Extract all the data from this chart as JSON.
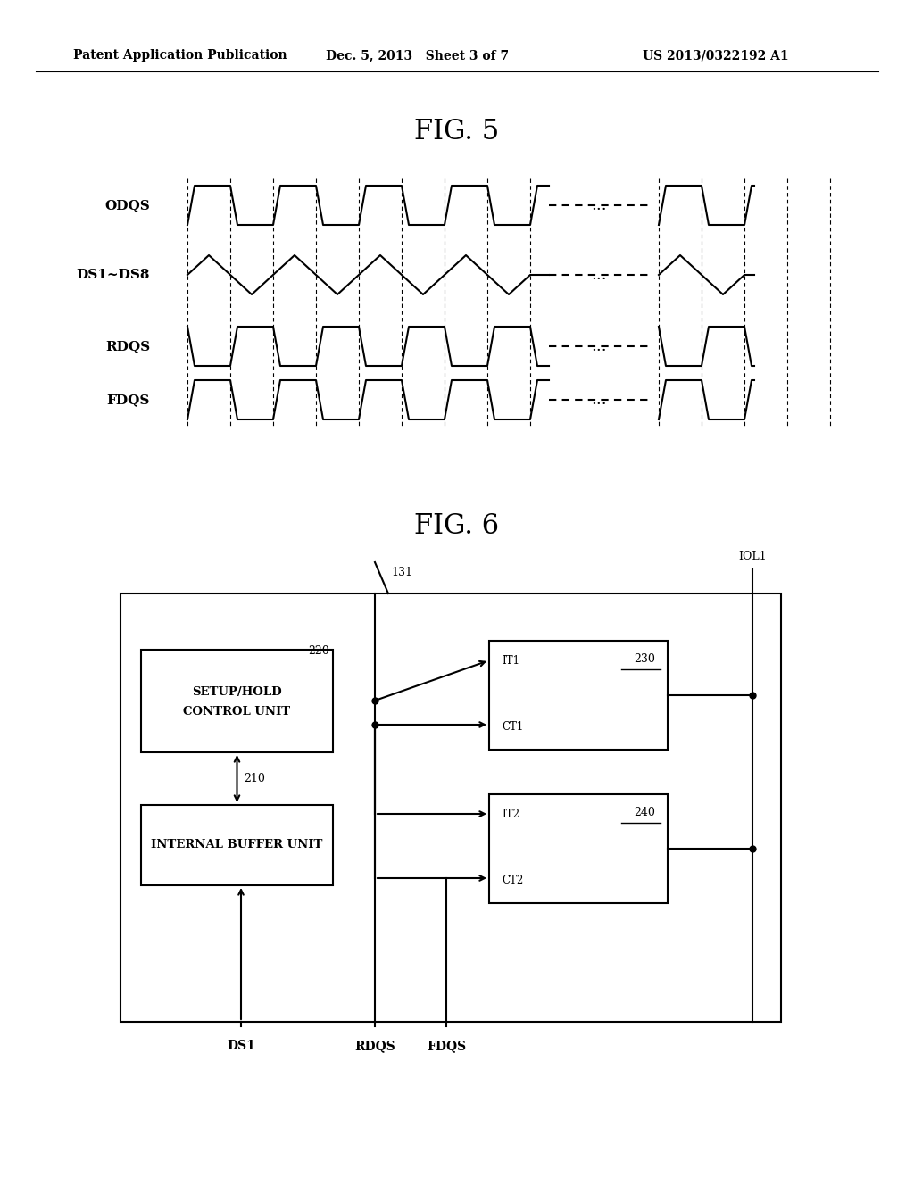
{
  "header_left": "Patent Application Publication",
  "header_mid": "Dec. 5, 2013   Sheet 3 of 7",
  "header_right": "US 2013/0322192 A1",
  "fig5_title": "FIG. 5",
  "fig6_title": "FIG. 6",
  "bg_color": "#ffffff",
  "line_color": "#000000",
  "signals": [
    "ODQS",
    "DS1~DS8",
    "RDQS",
    "FDQS"
  ],
  "note_131": "131",
  "note_220": "220",
  "note_210": "210",
  "note_ioli": "IOL1",
  "note_ds1": "DS1",
  "note_rdqs": "RDQS",
  "note_fdqs": "FDQS",
  "box1_label1": "SETUP/HOLD",
  "box1_label2": "CONTROL UNIT",
  "box2_label": "INTERNAL BUFFER UNIT",
  "it1": "IT1",
  "ct1": "CT1",
  "it2": "IT2",
  "ct2": "CT2",
  "num_230": "230",
  "num_240": "240"
}
